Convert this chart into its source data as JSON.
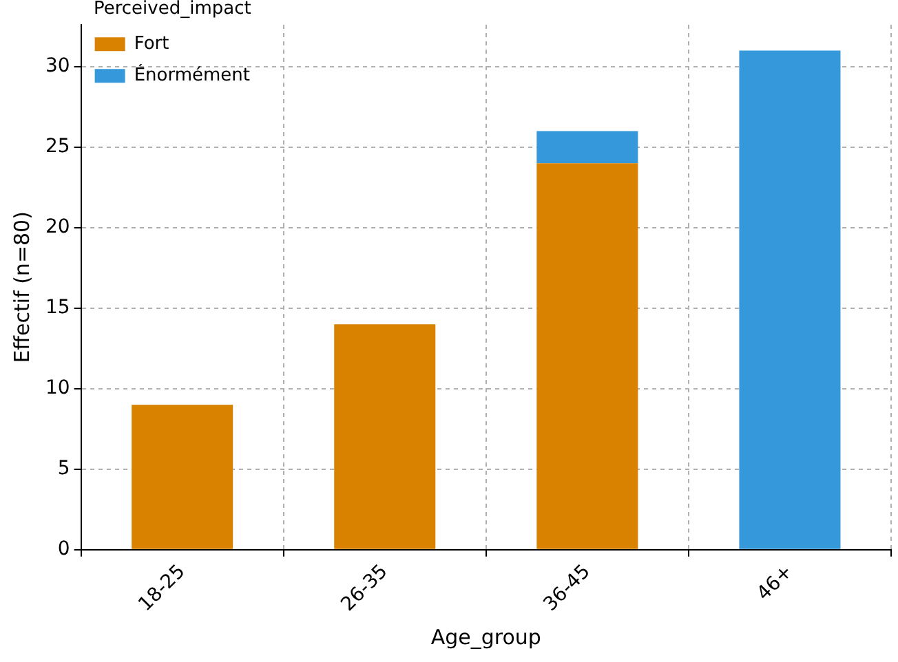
{
  "chart_data": {
    "type": "bar",
    "stacked": true,
    "xlabel": "Age_group",
    "ylabel": "Effectif (n=80)",
    "legend_title": "Perceived_impact",
    "legend": "top left",
    "grid": true,
    "categories": [
      "18-25",
      "26-35",
      "36-45",
      "46+"
    ],
    "series": [
      {
        "name": "Fort",
        "color": "#d98200",
        "values": [
          9,
          14,
          24,
          null
        ]
      },
      {
        "name": "Énormément",
        "color": "#3498db",
        "values": [
          null,
          null,
          2,
          31
        ]
      }
    ],
    "ylim": [
      0,
      32.6
    ],
    "yticks": [
      0,
      5,
      10,
      15,
      20,
      25,
      30
    ]
  }
}
